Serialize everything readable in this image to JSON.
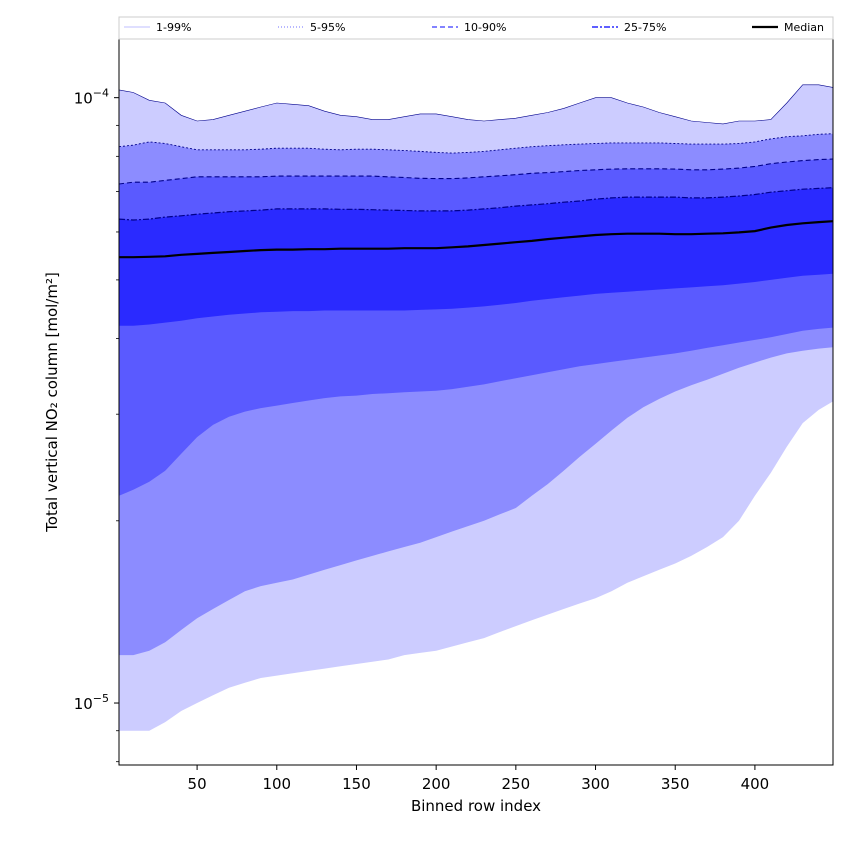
{
  "chart_data": {
    "type": "area",
    "xlabel": "Binned row index",
    "ylabel": "Total vertical NO₂ column [mol/m²]",
    "yscale": "log",
    "xlim": [
      1,
      449
    ],
    "ylim": [
      7.9e-06,
      0.000125
    ],
    "xticks": [
      50,
      100,
      150,
      200,
      250,
      300,
      350,
      400
    ],
    "yticks": [
      {
        "value": 1e-05,
        "base": "10",
        "exp": "−5"
      },
      {
        "value": 0.0001,
        "base": "10",
        "exp": "−4"
      }
    ],
    "grid": false,
    "legend_position": "top",
    "legend": [
      {
        "label": "1-99%",
        "style": "solid"
      },
      {
        "label": "5-95%",
        "style": "dotted"
      },
      {
        "label": "10-90%",
        "style": "dashed"
      },
      {
        "label": "25-75%",
        "style": "dashdot"
      },
      {
        "label": "Median",
        "style": "solid-bold"
      }
    ],
    "colors": {
      "band_1_99": "#ccccff",
      "band_5_95": "#8c8cff",
      "band_10_90": "#5a5aff",
      "band_25_75": "#2a2aff",
      "median": "#000000",
      "edge": "#00008b"
    },
    "x": [
      1,
      10,
      20,
      30,
      40,
      50,
      60,
      70,
      80,
      90,
      100,
      110,
      120,
      130,
      140,
      150,
      160,
      170,
      180,
      190,
      200,
      210,
      220,
      230,
      240,
      250,
      260,
      270,
      280,
      290,
      300,
      310,
      320,
      330,
      340,
      350,
      360,
      370,
      380,
      390,
      400,
      410,
      420,
      430,
      440,
      449
    ],
    "series": [
      {
        "name": "1%",
        "values": [
          9e-06,
          9e-06,
          9e-06,
          9.3e-06,
          9.7e-06,
          1e-05,
          1.03e-05,
          1.06e-05,
          1.08e-05,
          1.1e-05,
          1.11e-05,
          1.12e-05,
          1.13e-05,
          1.14e-05,
          1.15e-05,
          1.16e-05,
          1.17e-05,
          1.18e-05,
          1.2e-05,
          1.21e-05,
          1.22e-05,
          1.24e-05,
          1.26e-05,
          1.28e-05,
          1.31e-05,
          1.34e-05,
          1.37e-05,
          1.4e-05,
          1.43e-05,
          1.46e-05,
          1.49e-05,
          1.53e-05,
          1.58e-05,
          1.62e-05,
          1.66e-05,
          1.7e-05,
          1.75e-05,
          1.81e-05,
          1.88e-05,
          2e-05,
          2.2e-05,
          2.4e-05,
          2.65e-05,
          2.9e-05,
          3.05e-05,
          3.15e-05
        ]
      },
      {
        "name": "5%",
        "values": [
          1.2e-05,
          1.2e-05,
          1.22e-05,
          1.26e-05,
          1.32e-05,
          1.38e-05,
          1.43e-05,
          1.48e-05,
          1.53e-05,
          1.56e-05,
          1.58e-05,
          1.6e-05,
          1.63e-05,
          1.66e-05,
          1.69e-05,
          1.72e-05,
          1.75e-05,
          1.78e-05,
          1.81e-05,
          1.84e-05,
          1.88e-05,
          1.92e-05,
          1.96e-05,
          2e-05,
          2.05e-05,
          2.1e-05,
          2.2e-05,
          2.3e-05,
          2.42e-05,
          2.55e-05,
          2.68e-05,
          2.82e-05,
          2.96e-05,
          3.08e-05,
          3.18e-05,
          3.27e-05,
          3.35e-05,
          3.42e-05,
          3.5e-05,
          3.58e-05,
          3.65e-05,
          3.72e-05,
          3.78e-05,
          3.82e-05,
          3.85e-05,
          3.87e-05
        ]
      },
      {
        "name": "10%",
        "values": [
          2.2e-05,
          2.25e-05,
          2.32e-05,
          2.42e-05,
          2.58e-05,
          2.75e-05,
          2.88e-05,
          2.97e-05,
          3.03e-05,
          3.07e-05,
          3.1e-05,
          3.13e-05,
          3.16e-05,
          3.19e-05,
          3.21e-05,
          3.22e-05,
          3.24e-05,
          3.25e-05,
          3.26e-05,
          3.27e-05,
          3.28e-05,
          3.3e-05,
          3.33e-05,
          3.36e-05,
          3.4e-05,
          3.44e-05,
          3.48e-05,
          3.52e-05,
          3.56e-05,
          3.6e-05,
          3.63e-05,
          3.66e-05,
          3.69e-05,
          3.72e-05,
          3.75e-05,
          3.78e-05,
          3.82e-05,
          3.86e-05,
          3.9e-05,
          3.94e-05,
          3.98e-05,
          4.02e-05,
          4.07e-05,
          4.12e-05,
          4.15e-05,
          4.17e-05
        ]
      },
      {
        "name": "25%",
        "values": [
          4.2e-05,
          4.2e-05,
          4.22e-05,
          4.25e-05,
          4.28e-05,
          4.32e-05,
          4.35e-05,
          4.38e-05,
          4.4e-05,
          4.42e-05,
          4.43e-05,
          4.44e-05,
          4.44e-05,
          4.45e-05,
          4.45e-05,
          4.45e-05,
          4.45e-05,
          4.45e-05,
          4.45e-05,
          4.46e-05,
          4.47e-05,
          4.48e-05,
          4.5e-05,
          4.52e-05,
          4.55e-05,
          4.58e-05,
          4.62e-05,
          4.65e-05,
          4.68e-05,
          4.71e-05,
          4.74e-05,
          4.76e-05,
          4.78e-05,
          4.8e-05,
          4.82e-05,
          4.84e-05,
          4.86e-05,
          4.88e-05,
          4.9e-05,
          4.93e-05,
          4.96e-05,
          5e-05,
          5.04e-05,
          5.08e-05,
          5.1e-05,
          5.12e-05
        ]
      },
      {
        "name": "Median",
        "values": [
          5.45e-05,
          5.45e-05,
          5.46e-05,
          5.47e-05,
          5.5e-05,
          5.52e-05,
          5.54e-05,
          5.56e-05,
          5.58e-05,
          5.6e-05,
          5.61e-05,
          5.61e-05,
          5.62e-05,
          5.62e-05,
          5.63e-05,
          5.63e-05,
          5.63e-05,
          5.63e-05,
          5.64e-05,
          5.64e-05,
          5.64e-05,
          5.66e-05,
          5.68e-05,
          5.71e-05,
          5.74e-05,
          5.77e-05,
          5.8e-05,
          5.84e-05,
          5.87e-05,
          5.9e-05,
          5.93e-05,
          5.95e-05,
          5.96e-05,
          5.96e-05,
          5.96e-05,
          5.95e-05,
          5.95e-05,
          5.96e-05,
          5.97e-05,
          5.99e-05,
          6.02e-05,
          6.1e-05,
          6.16e-05,
          6.2e-05,
          6.23e-05,
          6.25e-05
        ]
      },
      {
        "name": "75%",
        "values": [
          6.3e-05,
          6.28e-05,
          6.3e-05,
          6.35e-05,
          6.38e-05,
          6.42e-05,
          6.45e-05,
          6.48e-05,
          6.5e-05,
          6.52e-05,
          6.55e-05,
          6.55e-05,
          6.55e-05,
          6.55e-05,
          6.54e-05,
          6.54e-05,
          6.53e-05,
          6.52e-05,
          6.51e-05,
          6.5e-05,
          6.5e-05,
          6.5e-05,
          6.52e-05,
          6.55e-05,
          6.58e-05,
          6.62e-05,
          6.65e-05,
          6.68e-05,
          6.72e-05,
          6.75e-05,
          6.8e-05,
          6.83e-05,
          6.85e-05,
          6.85e-05,
          6.85e-05,
          6.85e-05,
          6.83e-05,
          6.83e-05,
          6.85e-05,
          6.88e-05,
          6.92e-05,
          6.98e-05,
          7.02e-05,
          7.06e-05,
          7.08e-05,
          7.1e-05
        ]
      },
      {
        "name": "90%",
        "values": [
          7.2e-05,
          7.25e-05,
          7.25e-05,
          7.3e-05,
          7.35e-05,
          7.4e-05,
          7.4e-05,
          7.4e-05,
          7.4e-05,
          7.4e-05,
          7.42e-05,
          7.42e-05,
          7.42e-05,
          7.42e-05,
          7.42e-05,
          7.42e-05,
          7.42e-05,
          7.4e-05,
          7.38e-05,
          7.36e-05,
          7.35e-05,
          7.35e-05,
          7.37e-05,
          7.4e-05,
          7.43e-05,
          7.46e-05,
          7.5e-05,
          7.52e-05,
          7.55e-05,
          7.58e-05,
          7.6e-05,
          7.62e-05,
          7.63e-05,
          7.63e-05,
          7.63e-05,
          7.62e-05,
          7.6e-05,
          7.6e-05,
          7.62e-05,
          7.65e-05,
          7.7e-05,
          7.78e-05,
          7.83e-05,
          7.87e-05,
          7.9e-05,
          7.92e-05
        ]
      },
      {
        "name": "95%",
        "values": [
          8.3e-05,
          8.35e-05,
          8.45e-05,
          8.4e-05,
          8.3e-05,
          8.2e-05,
          8.2e-05,
          8.2e-05,
          8.2e-05,
          8.22e-05,
          8.25e-05,
          8.25e-05,
          8.25e-05,
          8.22e-05,
          8.2e-05,
          8.22e-05,
          8.22e-05,
          8.2e-05,
          8.18e-05,
          8.15e-05,
          8.12e-05,
          8.1e-05,
          8.12e-05,
          8.15e-05,
          8.2e-05,
          8.25e-05,
          8.3e-05,
          8.33e-05,
          8.36e-05,
          8.38e-05,
          8.4e-05,
          8.42e-05,
          8.42e-05,
          8.42e-05,
          8.42e-05,
          8.4e-05,
          8.38e-05,
          8.38e-05,
          8.38e-05,
          8.4e-05,
          8.45e-05,
          8.55e-05,
          8.62e-05,
          8.65e-05,
          8.7e-05,
          8.72e-05
        ]
      },
      {
        "name": "99%",
        "values": [
          0.000103,
          0.000102,
          9.9e-05,
          9.8e-05,
          9.35e-05,
          9.15e-05,
          9.2e-05,
          9.35e-05,
          9.5e-05,
          9.65e-05,
          9.8e-05,
          9.75e-05,
          9.7e-05,
          9.5e-05,
          9.35e-05,
          9.3e-05,
          9.2e-05,
          9.2e-05,
          9.3e-05,
          9.4e-05,
          9.4e-05,
          9.3e-05,
          9.2e-05,
          9.15e-05,
          9.2e-05,
          9.25e-05,
          9.35e-05,
          9.45e-05,
          9.6e-05,
          9.8e-05,
          0.0001,
          0.0001,
          9.8e-05,
          9.65e-05,
          9.45e-05,
          9.3e-05,
          9.15e-05,
          9.1e-05,
          9.05e-05,
          9.15e-05,
          9.15e-05,
          9.2e-05,
          9.8e-05,
          0.000105,
          0.000105,
          0.000104
        ]
      }
    ]
  }
}
